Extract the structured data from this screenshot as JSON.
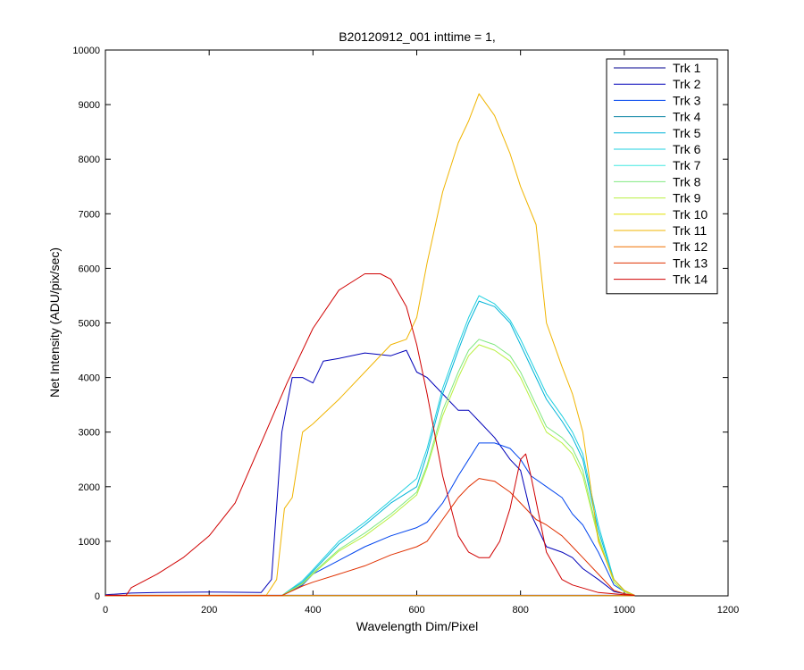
{
  "chart_data": {
    "type": "line",
    "title": "B20120912_001 inttime = 1,",
    "xlabel": "Wavelength Dim/Pixel",
    "ylabel": "Net Intensity (ADU/pix/sec)",
    "xlim": [
      0,
      1200
    ],
    "ylim": [
      0,
      10000
    ],
    "xticks": [
      0,
      200,
      400,
      600,
      800,
      1000,
      1200
    ],
    "yticks": [
      0,
      1000,
      2000,
      3000,
      4000,
      5000,
      6000,
      7000,
      8000,
      9000,
      10000
    ],
    "grid": false,
    "legend_position": "top-right",
    "series": [
      {
        "name": "Trk 1",
        "color": "#00008f",
        "points": [
          [
            0,
            10
          ],
          [
            300,
            10
          ],
          [
            1020,
            10
          ]
        ]
      },
      {
        "name": "Trk 2",
        "color": "#0000b8",
        "points": [
          [
            0,
            20
          ],
          [
            50,
            50
          ],
          [
            100,
            60
          ],
          [
            200,
            70
          ],
          [
            300,
            60
          ],
          [
            320,
            300
          ],
          [
            340,
            3000
          ],
          [
            360,
            4000
          ],
          [
            380,
            4000
          ],
          [
            400,
            3900
          ],
          [
            420,
            4300
          ],
          [
            450,
            4350
          ],
          [
            500,
            4450
          ],
          [
            550,
            4400
          ],
          [
            580,
            4500
          ],
          [
            600,
            4100
          ],
          [
            620,
            4000
          ],
          [
            650,
            3700
          ],
          [
            680,
            3400
          ],
          [
            700,
            3400
          ],
          [
            720,
            3200
          ],
          [
            750,
            2900
          ],
          [
            780,
            2500
          ],
          [
            800,
            2300
          ],
          [
            820,
            1500
          ],
          [
            850,
            900
          ],
          [
            880,
            800
          ],
          [
            900,
            700
          ],
          [
            920,
            500
          ],
          [
            950,
            300
          ],
          [
            980,
            80
          ],
          [
            1000,
            40
          ],
          [
            1020,
            10
          ]
        ]
      },
      {
        "name": "Trk 3",
        "color": "#0044ee",
        "points": [
          [
            0,
            5
          ],
          [
            340,
            5
          ],
          [
            380,
            200
          ],
          [
            400,
            400
          ],
          [
            450,
            650
          ],
          [
            500,
            900
          ],
          [
            550,
            1100
          ],
          [
            600,
            1250
          ],
          [
            620,
            1350
          ],
          [
            650,
            1700
          ],
          [
            680,
            2200
          ],
          [
            700,
            2500
          ],
          [
            720,
            2800
          ],
          [
            750,
            2800
          ],
          [
            780,
            2700
          ],
          [
            800,
            2500
          ],
          [
            820,
            2200
          ],
          [
            850,
            2000
          ],
          [
            880,
            1800
          ],
          [
            900,
            1500
          ],
          [
            920,
            1300
          ],
          [
            950,
            800
          ],
          [
            980,
            200
          ],
          [
            1000,
            80
          ],
          [
            1020,
            10
          ]
        ]
      },
      {
        "name": "Trk 4",
        "color": "#007fa0",
        "points": [
          [
            0,
            5
          ],
          [
            1020,
            5
          ]
        ]
      },
      {
        "name": "Trk 5",
        "color": "#00b4d8",
        "points": [
          [
            0,
            5
          ],
          [
            340,
            5
          ],
          [
            380,
            250
          ],
          [
            400,
            450
          ],
          [
            450,
            950
          ],
          [
            500,
            1300
          ],
          [
            550,
            1700
          ],
          [
            600,
            2000
          ],
          [
            620,
            2600
          ],
          [
            650,
            3700
          ],
          [
            680,
            4500
          ],
          [
            700,
            5000
          ],
          [
            720,
            5400
          ],
          [
            750,
            5300
          ],
          [
            780,
            5000
          ],
          [
            800,
            4600
          ],
          [
            830,
            4000
          ],
          [
            850,
            3600
          ],
          [
            880,
            3200
          ],
          [
            900,
            2900
          ],
          [
            920,
            2500
          ],
          [
            950,
            1200
          ],
          [
            980,
            300
          ],
          [
            1000,
            100
          ],
          [
            1020,
            10
          ]
        ]
      },
      {
        "name": "Trk 6",
        "color": "#1fd0e0",
        "points": [
          [
            0,
            5
          ],
          [
            340,
            5
          ],
          [
            380,
            280
          ],
          [
            400,
            480
          ],
          [
            450,
            1000
          ],
          [
            500,
            1350
          ],
          [
            550,
            1750
          ],
          [
            600,
            2150
          ],
          [
            620,
            2700
          ],
          [
            650,
            3800
          ],
          [
            680,
            4600
          ],
          [
            700,
            5100
          ],
          [
            720,
            5500
          ],
          [
            750,
            5350
          ],
          [
            780,
            5050
          ],
          [
            800,
            4700
          ],
          [
            830,
            4100
          ],
          [
            850,
            3700
          ],
          [
            880,
            3300
          ],
          [
            900,
            3000
          ],
          [
            920,
            2600
          ],
          [
            950,
            1300
          ],
          [
            980,
            300
          ],
          [
            1000,
            100
          ],
          [
            1020,
            10
          ]
        ]
      },
      {
        "name": "Trk 7",
        "color": "#40e8e0",
        "points": [
          [
            0,
            5
          ],
          [
            1020,
            5
          ]
        ]
      },
      {
        "name": "Trk 8",
        "color": "#80e880",
        "points": [
          [
            0,
            5
          ],
          [
            340,
            5
          ],
          [
            380,
            230
          ],
          [
            400,
            420
          ],
          [
            450,
            850
          ],
          [
            500,
            1150
          ],
          [
            550,
            1500
          ],
          [
            600,
            1900
          ],
          [
            620,
            2400
          ],
          [
            650,
            3400
          ],
          [
            680,
            4100
          ],
          [
            700,
            4500
          ],
          [
            720,
            4700
          ],
          [
            750,
            4600
          ],
          [
            780,
            4400
          ],
          [
            800,
            4100
          ],
          [
            830,
            3500
          ],
          [
            850,
            3100
          ],
          [
            880,
            2900
          ],
          [
            900,
            2700
          ],
          [
            920,
            2300
          ],
          [
            950,
            1100
          ],
          [
            980,
            250
          ],
          [
            1000,
            80
          ],
          [
            1020,
            10
          ]
        ]
      },
      {
        "name": "Trk 9",
        "color": "#b8f040",
        "points": [
          [
            0,
            5
          ],
          [
            340,
            5
          ],
          [
            380,
            220
          ],
          [
            400,
            400
          ],
          [
            450,
            820
          ],
          [
            500,
            1100
          ],
          [
            550,
            1450
          ],
          [
            600,
            1850
          ],
          [
            620,
            2350
          ],
          [
            650,
            3300
          ],
          [
            680,
            4000
          ],
          [
            700,
            4400
          ],
          [
            720,
            4600
          ],
          [
            750,
            4500
          ],
          [
            780,
            4300
          ],
          [
            800,
            4000
          ],
          [
            830,
            3400
          ],
          [
            850,
            3000
          ],
          [
            880,
            2800
          ],
          [
            900,
            2600
          ],
          [
            920,
            2200
          ],
          [
            950,
            1050
          ],
          [
            980,
            250
          ],
          [
            1000,
            80
          ],
          [
            1020,
            10
          ]
        ]
      },
      {
        "name": "Trk 10",
        "color": "#e0e000",
        "points": [
          [
            0,
            5
          ],
          [
            1020,
            5
          ]
        ]
      },
      {
        "name": "Trk 11",
        "color": "#f0b400",
        "points": [
          [
            0,
            10
          ],
          [
            310,
            10
          ],
          [
            330,
            300
          ],
          [
            345,
            1600
          ],
          [
            360,
            1800
          ],
          [
            380,
            3000
          ],
          [
            400,
            3150
          ],
          [
            450,
            3600
          ],
          [
            500,
            4100
          ],
          [
            550,
            4600
          ],
          [
            580,
            4700
          ],
          [
            600,
            5100
          ],
          [
            620,
            6100
          ],
          [
            650,
            7400
          ],
          [
            680,
            8300
          ],
          [
            700,
            8700
          ],
          [
            720,
            9200
          ],
          [
            750,
            8800
          ],
          [
            780,
            8100
          ],
          [
            800,
            7500
          ],
          [
            830,
            6800
          ],
          [
            850,
            5000
          ],
          [
            880,
            4200
          ],
          [
            900,
            3700
          ],
          [
            920,
            3000
          ],
          [
            950,
            1000
          ],
          [
            980,
            300
          ],
          [
            1000,
            100
          ],
          [
            1020,
            10
          ]
        ]
      },
      {
        "name": "Trk 12",
        "color": "#f07000",
        "points": [
          [
            0,
            5
          ],
          [
            1020,
            5
          ]
        ]
      },
      {
        "name": "Trk 13",
        "color": "#e03000",
        "points": [
          [
            0,
            5
          ],
          [
            340,
            5
          ],
          [
            380,
            180
          ],
          [
            400,
            250
          ],
          [
            450,
            400
          ],
          [
            500,
            550
          ],
          [
            550,
            750
          ],
          [
            600,
            900
          ],
          [
            620,
            1000
          ],
          [
            650,
            1400
          ],
          [
            680,
            1800
          ],
          [
            700,
            2000
          ],
          [
            720,
            2150
          ],
          [
            750,
            2100
          ],
          [
            780,
            1900
          ],
          [
            800,
            1700
          ],
          [
            830,
            1400
          ],
          [
            850,
            1300
          ],
          [
            880,
            1100
          ],
          [
            900,
            900
          ],
          [
            920,
            700
          ],
          [
            950,
            400
          ],
          [
            980,
            100
          ],
          [
            1000,
            40
          ],
          [
            1020,
            10
          ]
        ]
      },
      {
        "name": "Trk 14",
        "color": "#d00000",
        "points": [
          [
            0,
            10
          ],
          [
            40,
            10
          ],
          [
            50,
            150
          ],
          [
            100,
            400
          ],
          [
            150,
            700
          ],
          [
            200,
            1100
          ],
          [
            250,
            1700
          ],
          [
            300,
            2800
          ],
          [
            350,
            3900
          ],
          [
            400,
            4900
          ],
          [
            450,
            5600
          ],
          [
            500,
            5900
          ],
          [
            530,
            5900
          ],
          [
            550,
            5800
          ],
          [
            580,
            5300
          ],
          [
            600,
            4600
          ],
          [
            620,
            3700
          ],
          [
            650,
            2200
          ],
          [
            680,
            1100
          ],
          [
            700,
            800
          ],
          [
            720,
            700
          ],
          [
            740,
            700
          ],
          [
            760,
            1000
          ],
          [
            780,
            1600
          ],
          [
            800,
            2500
          ],
          [
            810,
            2600
          ],
          [
            820,
            2200
          ],
          [
            850,
            800
          ],
          [
            880,
            300
          ],
          [
            900,
            200
          ],
          [
            950,
            60
          ],
          [
            1000,
            20
          ],
          [
            1020,
            10
          ]
        ]
      }
    ]
  }
}
